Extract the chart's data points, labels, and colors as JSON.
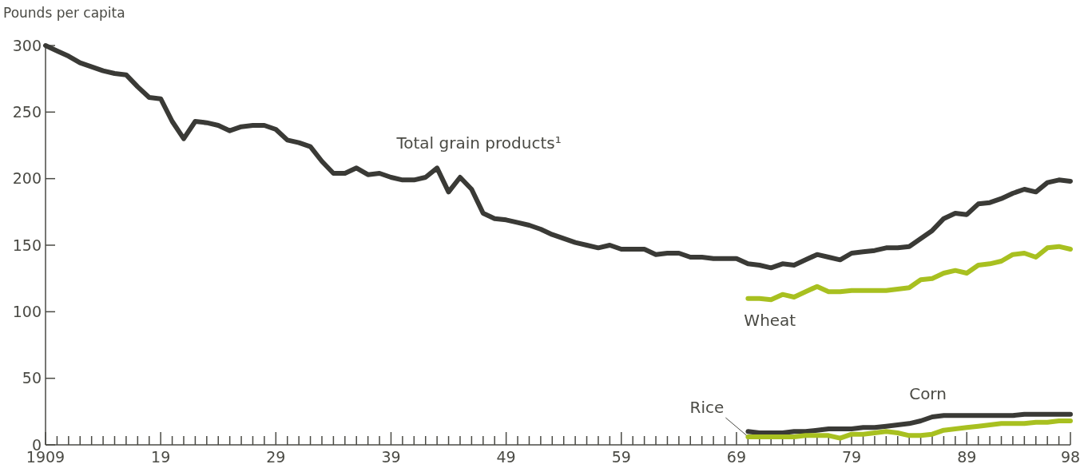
{
  "chart_data": {
    "type": "line",
    "ylabel": "Pounds per capita",
    "xlim": [
      1909,
      1998
    ],
    "ylim": [
      0,
      300
    ],
    "yticks": [
      0,
      50,
      100,
      150,
      200,
      250,
      300
    ],
    "xticks": [
      {
        "value": 1909,
        "label": "1909"
      },
      {
        "value": 1910,
        "label": null
      },
      {
        "value": 1911,
        "label": null
      },
      {
        "value": 1912,
        "label": null
      },
      {
        "value": 1913,
        "label": null
      },
      {
        "value": 1914,
        "label": null
      },
      {
        "value": 1915,
        "label": null
      },
      {
        "value": 1916,
        "label": null
      },
      {
        "value": 1917,
        "label": null
      },
      {
        "value": 1918,
        "label": null
      },
      {
        "value": 1919,
        "label": "19"
      },
      {
        "value": 1920,
        "label": null
      },
      {
        "value": 1921,
        "label": null
      },
      {
        "value": 1922,
        "label": null
      },
      {
        "value": 1923,
        "label": null
      },
      {
        "value": 1924,
        "label": null
      },
      {
        "value": 1925,
        "label": null
      },
      {
        "value": 1926,
        "label": null
      },
      {
        "value": 1927,
        "label": null
      },
      {
        "value": 1928,
        "label": null
      },
      {
        "value": 1929,
        "label": "29"
      },
      {
        "value": 1930,
        "label": null
      },
      {
        "value": 1931,
        "label": null
      },
      {
        "value": 1932,
        "label": null
      },
      {
        "value": 1933,
        "label": null
      },
      {
        "value": 1934,
        "label": null
      },
      {
        "value": 1935,
        "label": null
      },
      {
        "value": 1936,
        "label": null
      },
      {
        "value": 1937,
        "label": null
      },
      {
        "value": 1938,
        "label": null
      },
      {
        "value": 1939,
        "label": "39"
      },
      {
        "value": 1940,
        "label": null
      },
      {
        "value": 1941,
        "label": null
      },
      {
        "value": 1942,
        "label": null
      },
      {
        "value": 1943,
        "label": null
      },
      {
        "value": 1944,
        "label": null
      },
      {
        "value": 1945,
        "label": null
      },
      {
        "value": 1946,
        "label": null
      },
      {
        "value": 1947,
        "label": null
      },
      {
        "value": 1948,
        "label": null
      },
      {
        "value": 1949,
        "label": "49"
      },
      {
        "value": 1950,
        "label": null
      },
      {
        "value": 1951,
        "label": null
      },
      {
        "value": 1952,
        "label": null
      },
      {
        "value": 1953,
        "label": null
      },
      {
        "value": 1954,
        "label": null
      },
      {
        "value": 1955,
        "label": null
      },
      {
        "value": 1956,
        "label": null
      },
      {
        "value": 1957,
        "label": null
      },
      {
        "value": 1958,
        "label": null
      },
      {
        "value": 1959,
        "label": "59"
      },
      {
        "value": 1960,
        "label": null
      },
      {
        "value": 1961,
        "label": null
      },
      {
        "value": 1962,
        "label": null
      },
      {
        "value": 1963,
        "label": null
      },
      {
        "value": 1964,
        "label": null
      },
      {
        "value": 1965,
        "label": null
      },
      {
        "value": 1966,
        "label": null
      },
      {
        "value": 1967,
        "label": null
      },
      {
        "value": 1968,
        "label": null
      },
      {
        "value": 1969,
        "label": "69"
      },
      {
        "value": 1970,
        "label": null
      },
      {
        "value": 1971,
        "label": null
      },
      {
        "value": 1972,
        "label": null
      },
      {
        "value": 1973,
        "label": null
      },
      {
        "value": 1974,
        "label": null
      },
      {
        "value": 1975,
        "label": null
      },
      {
        "value": 1976,
        "label": null
      },
      {
        "value": 1977,
        "label": null
      },
      {
        "value": 1978,
        "label": null
      },
      {
        "value": 1979,
        "label": "79"
      },
      {
        "value": 1980,
        "label": null
      },
      {
        "value": 1981,
        "label": null
      },
      {
        "value": 1982,
        "label": null
      },
      {
        "value": 1983,
        "label": null
      },
      {
        "value": 1984,
        "label": null
      },
      {
        "value": 1985,
        "label": null
      },
      {
        "value": 1986,
        "label": null
      },
      {
        "value": 1987,
        "label": null
      },
      {
        "value": 1988,
        "label": null
      },
      {
        "value": 1989,
        "label": "89"
      },
      {
        "value": 1990,
        "label": null
      },
      {
        "value": 1991,
        "label": null
      },
      {
        "value": 1992,
        "label": null
      },
      {
        "value": 1993,
        "label": null
      },
      {
        "value": 1994,
        "label": null
      },
      {
        "value": 1995,
        "label": null
      },
      {
        "value": 1996,
        "label": null
      },
      {
        "value": 1997,
        "label": null
      },
      {
        "value": 1998,
        "label": "98"
      }
    ],
    "grid": false,
    "legend": false,
    "series": [
      {
        "name": "Total grain products¹",
        "color": "#3a3a36",
        "x": [
          1909,
          1910,
          1911,
          1912,
          1913,
          1914,
          1915,
          1916,
          1917,
          1918,
          1919,
          1920,
          1921,
          1922,
          1923,
          1924,
          1925,
          1926,
          1927,
          1928,
          1929,
          1930,
          1931,
          1932,
          1933,
          1934,
          1935,
          1936,
          1937,
          1938,
          1939,
          1940,
          1941,
          1942,
          1943,
          1944,
          1945,
          1946,
          1947,
          1948,
          1949,
          1950,
          1951,
          1952,
          1953,
          1954,
          1955,
          1956,
          1957,
          1958,
          1959,
          1960,
          1961,
          1962,
          1963,
          1964,
          1965,
          1966,
          1967,
          1968,
          1969,
          1970,
          1971,
          1972,
          1973,
          1974,
          1975,
          1976,
          1977,
          1978,
          1979,
          1980,
          1981,
          1982,
          1983,
          1984,
          1985,
          1986,
          1987,
          1988,
          1989,
          1990,
          1991,
          1992,
          1993,
          1994,
          1995,
          1996,
          1997,
          1998
        ],
        "values": [
          300,
          296,
          292,
          287,
          284,
          281,
          279,
          278,
          269,
          261,
          260,
          243,
          230,
          243,
          242,
          240,
          236,
          239,
          240,
          240,
          237,
          229,
          227,
          224,
          213,
          204,
          204,
          208,
          203,
          204,
          201,
          199,
          199,
          201,
          208,
          190,
          201,
          192,
          174,
          170,
          169,
          167,
          165,
          162,
          158,
          155,
          152,
          150,
          148,
          150,
          147,
          147,
          147,
          143,
          144,
          144,
          141,
          141,
          140,
          140,
          140,
          136,
          135,
          133,
          136,
          135,
          139,
          143,
          141,
          139,
          144,
          145,
          146,
          148,
          148,
          149,
          155,
          161,
          170,
          174,
          173,
          181,
          182,
          185,
          189,
          192,
          190,
          197,
          199,
          198
        ]
      },
      {
        "name": "Wheat",
        "color": "#a8c020",
        "x": [
          1970,
          1971,
          1972,
          1973,
          1974,
          1975,
          1976,
          1977,
          1978,
          1979,
          1980,
          1981,
          1982,
          1983,
          1984,
          1985,
          1986,
          1987,
          1988,
          1989,
          1990,
          1991,
          1992,
          1993,
          1994,
          1995,
          1996,
          1997,
          1998
        ],
        "values": [
          110,
          110,
          109,
          113,
          111,
          115,
          119,
          115,
          115,
          116,
          116,
          116,
          116,
          117,
          118,
          124,
          125,
          129,
          131,
          129,
          135,
          136,
          138,
          143,
          144,
          141,
          148,
          149,
          147
        ]
      },
      {
        "name": "Corn",
        "color": "#3a3a36",
        "x": [
          1970,
          1971,
          1972,
          1973,
          1974,
          1975,
          1976,
          1977,
          1978,
          1979,
          1980,
          1981,
          1982,
          1983,
          1984,
          1985,
          1986,
          1987,
          1988,
          1989,
          1990,
          1991,
          1992,
          1993,
          1994,
          1995,
          1996,
          1997,
          1998
        ],
        "values": [
          10,
          9,
          9,
          9,
          10,
          10,
          11,
          12,
          12,
          12,
          13,
          13,
          14,
          15,
          16,
          18,
          21,
          22,
          22,
          22,
          22,
          22,
          22,
          22,
          23,
          23,
          23,
          23,
          23
        ]
      },
      {
        "name": "Rice",
        "color": "#a8c020",
        "x": [
          1970,
          1971,
          1972,
          1973,
          1974,
          1975,
          1976,
          1977,
          1978,
          1979,
          1980,
          1981,
          1982,
          1983,
          1984,
          1985,
          1986,
          1987,
          1988,
          1989,
          1990,
          1991,
          1992,
          1993,
          1994,
          1995,
          1996,
          1997,
          1998
        ],
        "values": [
          6,
          6,
          6,
          6,
          6,
          7,
          7,
          7,
          5,
          8,
          8,
          9,
          10,
          9,
          7,
          7,
          8,
          11,
          12,
          13,
          14,
          15,
          16,
          16,
          16,
          17,
          17,
          18,
          18
        ]
      }
    ]
  }
}
